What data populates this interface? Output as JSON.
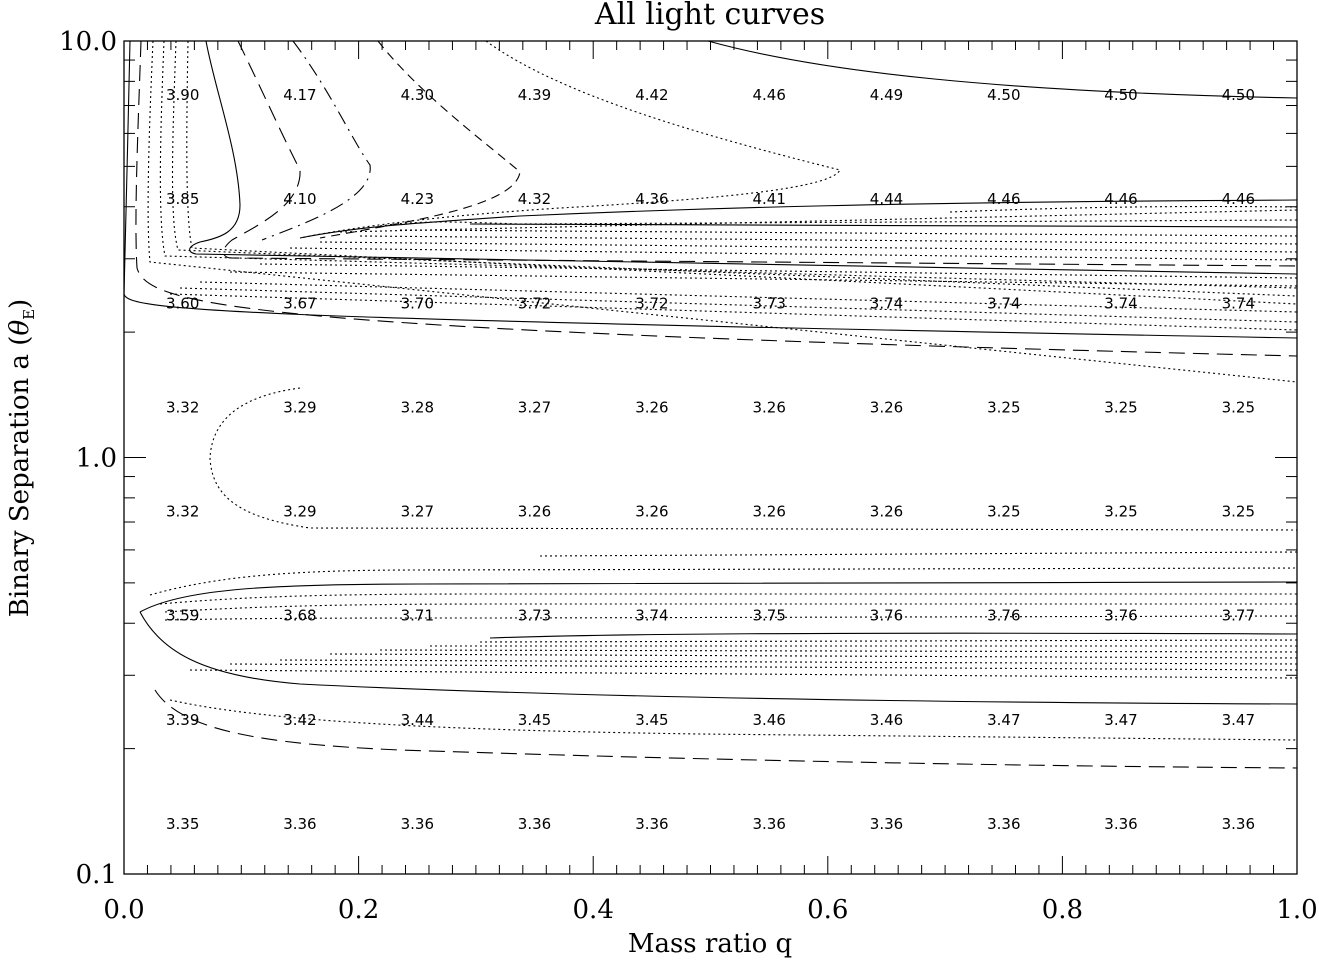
{
  "chart_data": {
    "type": "heatmap",
    "title": "All light curves",
    "xlabel": "Mass ratio q",
    "ylabel": "Binary Separation a (θE)",
    "ylabel_main": "Binary Separation a (",
    "ylabel_symbol": "θ",
    "ylabel_subscript": "E",
    "ylabel_close": ")",
    "xlim": [
      0.0,
      1.0
    ],
    "ylim": [
      0.1,
      10.0
    ],
    "yscale": "log",
    "x_ticks": [
      {
        "value": 0.0,
        "label": "0.0"
      },
      {
        "value": 0.2,
        "label": "0.2"
      },
      {
        "value": 0.4,
        "label": "0.4"
      },
      {
        "value": 0.6,
        "label": "0.6"
      },
      {
        "value": 0.8,
        "label": "0.8"
      },
      {
        "value": 1.0,
        "label": "1.0"
      }
    ],
    "y_ticks": [
      {
        "value": 0.1,
        "label": "0.1"
      },
      {
        "value": 1.0,
        "label": "1.0"
      },
      {
        "value": 10.0,
        "label": "10.0"
      }
    ],
    "x": [
      0.05,
      0.15,
      0.25,
      0.35,
      0.45,
      0.55,
      0.65,
      0.75,
      0.85,
      0.95
    ],
    "y": [
      7.41,
      4.17,
      2.34,
      1.32,
      0.741,
      0.417,
      0.234,
      0.132
    ],
    "z": [
      [
        "3.90",
        "4.17",
        "4.30",
        "4.39",
        "4.42",
        "4.46",
        "4.49",
        "4.50",
        "4.50",
        "4.50"
      ],
      [
        "3.85",
        "4.10",
        "4.23",
        "4.32",
        "4.36",
        "4.41",
        "4.44",
        "4.46",
        "4.46",
        "4.46"
      ],
      [
        "3.60",
        "3.67",
        "3.70",
        "3.72",
        "3.72",
        "3.73",
        "3.74",
        "3.74",
        "3.74",
        "3.74"
      ],
      [
        "3.32",
        "3.29",
        "3.28",
        "3.27",
        "3.26",
        "3.26",
        "3.26",
        "3.25",
        "3.25",
        "3.25"
      ],
      [
        "3.32",
        "3.29",
        "3.27",
        "3.26",
        "3.26",
        "3.26",
        "3.26",
        "3.25",
        "3.25",
        "3.25"
      ],
      [
        "3.59",
        "3.68",
        "3.71",
        "3.73",
        "3.74",
        "3.75",
        "3.76",
        "3.76",
        "3.76",
        "3.77"
      ],
      [
        "3.39",
        "3.42",
        "3.44",
        "3.45",
        "3.45",
        "3.46",
        "3.46",
        "3.47",
        "3.47",
        "3.47"
      ],
      [
        "3.35",
        "3.36",
        "3.36",
        "3.36",
        "3.36",
        "3.36",
        "3.36",
        "3.36",
        "3.36",
        "3.36"
      ]
    ],
    "contours": "black solid, dashed and dotted iso-lines",
    "grid": false,
    "legend": "none"
  }
}
